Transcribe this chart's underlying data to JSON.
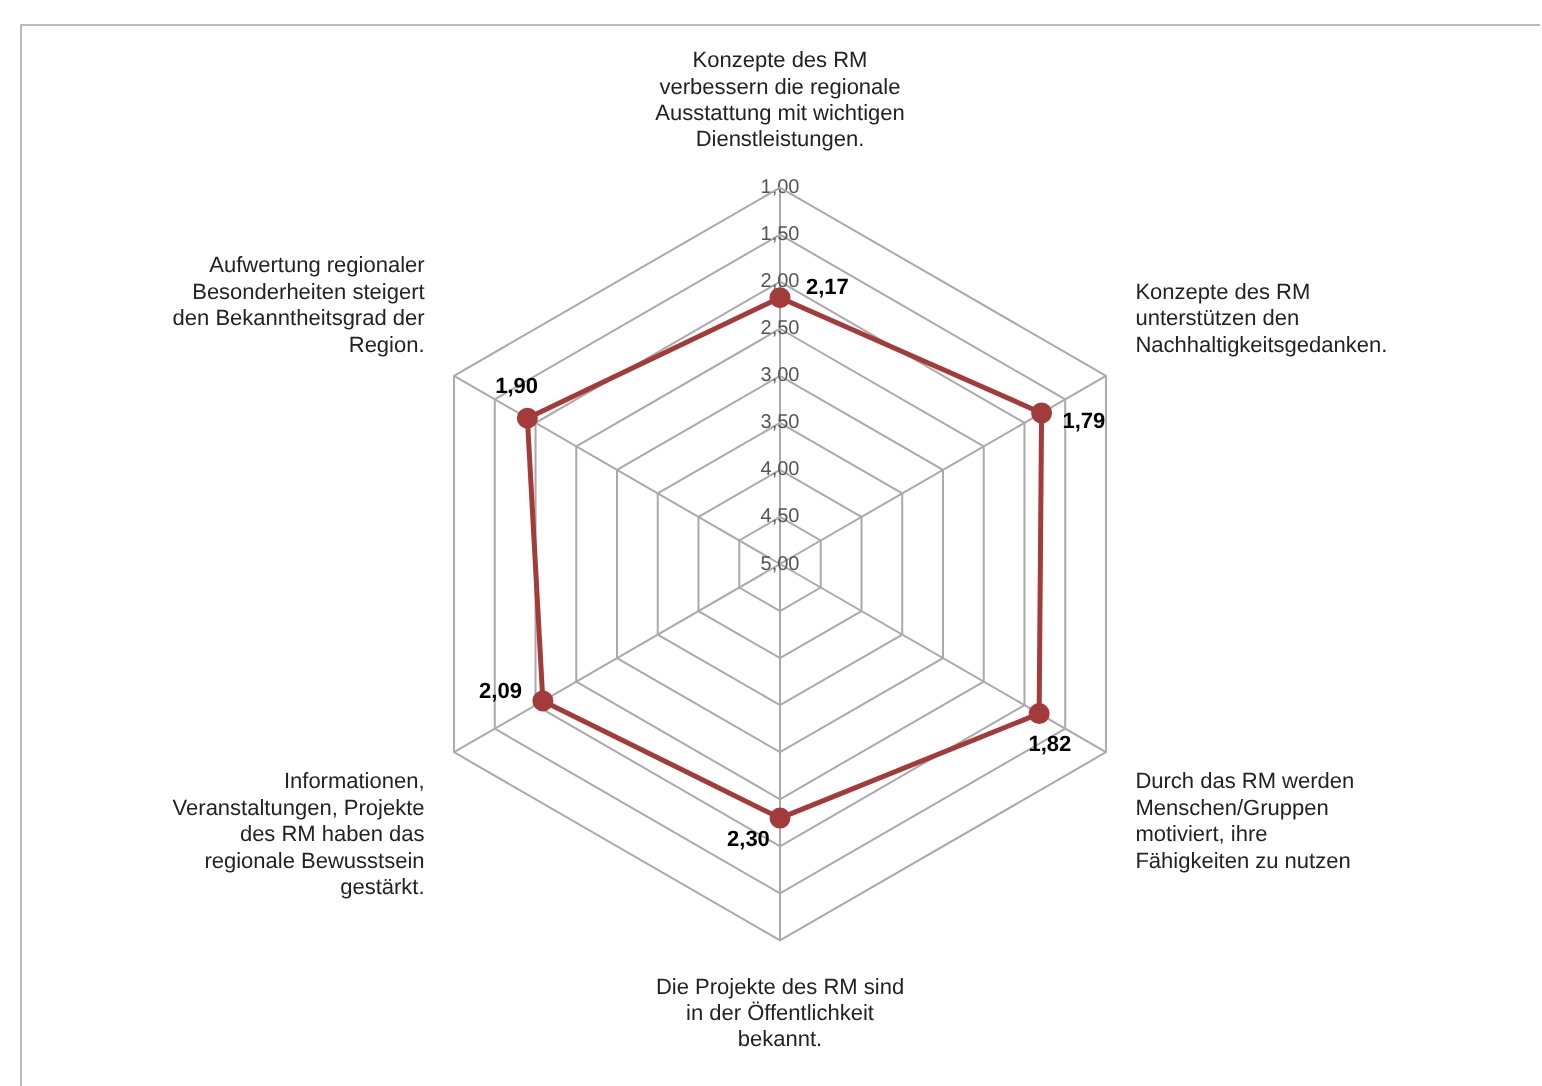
{
  "chart_data": {
    "type": "radar",
    "categories": [
      "Konzepte des RM verbessern die regionale Ausstattung mit wichtigen Dienstleistungen.",
      "Konzepte des RM unterstützen den Nachhaltigkeitsgedanken.",
      "Durch das RM werden Menschen/Gruppen motiviert, ihre Fähigkeiten zu nutzen",
      "Die Projekte des RM sind in der Öffentlichkeit bekannt.",
      "Informationen, Veranstaltungen, Projekte des RM haben das regionale Bewusstsein gestärkt.",
      "Aufwertung regionaler Besonderheiten steigert den Bekanntheitsgrad der Region."
    ],
    "series": [
      {
        "color": "#a33b3b",
        "values": [
          2.17,
          1.79,
          1.82,
          2.3,
          2.09,
          1.9
        ],
        "value_labels": [
          "2,17",
          "1,79",
          "1,82",
          "2,30",
          "2,09",
          "1,90"
        ]
      }
    ],
    "ylim": [
      5,
      1
    ],
    "yticks": [
      {
        "value": 1,
        "label": "1,00"
      },
      {
        "value": 1.5,
        "label": "1,50"
      },
      {
        "value": 2,
        "label": "2,00"
      },
      {
        "value": 2.5,
        "label": "2,50"
      },
      {
        "value": 3,
        "label": "3,00"
      },
      {
        "value": 3.5,
        "label": "3,50"
      },
      {
        "value": 4,
        "label": "4,00"
      },
      {
        "value": 4.5,
        "label": "4,50"
      },
      {
        "value": 5,
        "label": "5,00"
      }
    ],
    "grid": true,
    "legend": false,
    "marker": "circle",
    "line_style": "solid"
  }
}
